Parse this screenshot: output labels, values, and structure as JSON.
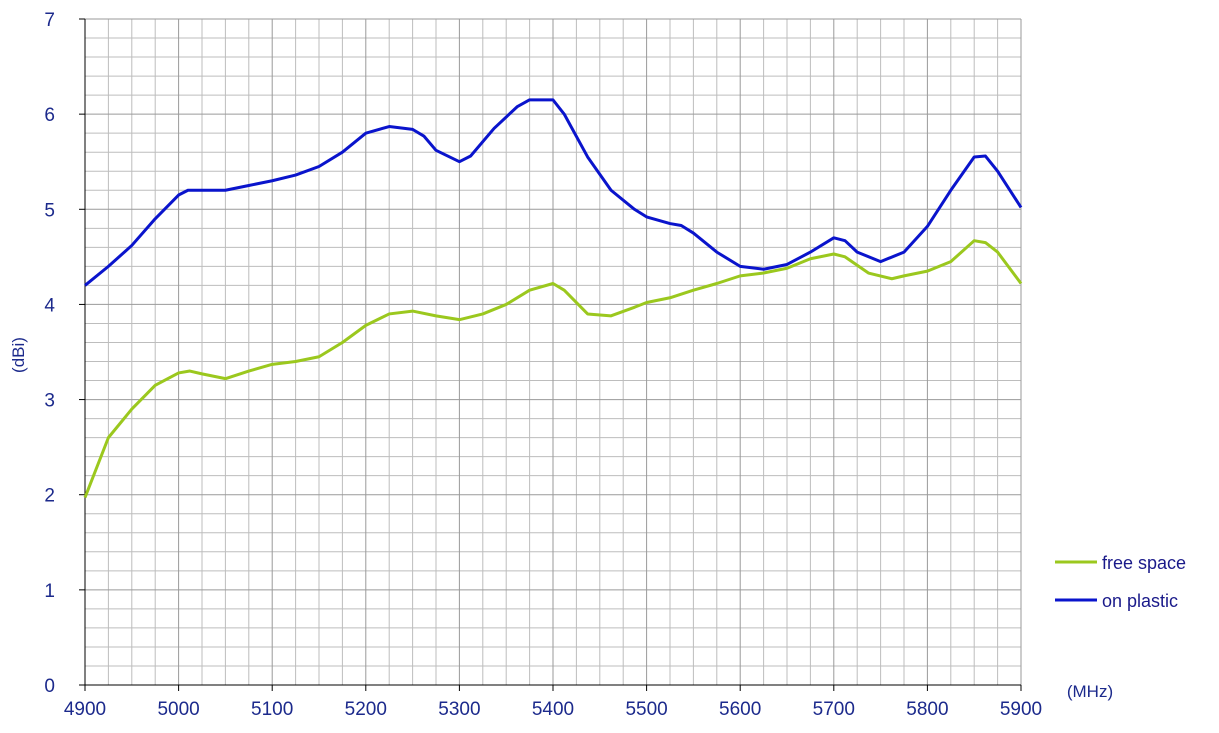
{
  "chart_data": {
    "type": "line",
    "y_label": "(dBi)",
    "x_label": "(MHz)",
    "xlim": [
      4900,
      5900
    ],
    "xticks": [
      4900,
      5000,
      5100,
      5200,
      5300,
      5400,
      5500,
      5600,
      5700,
      5800,
      5900
    ],
    "xminorticks": [
      4925,
      4950,
      4975,
      5025,
      5050,
      5075,
      5125,
      5150,
      5175,
      5225,
      5250,
      5275,
      5325,
      5350,
      5375,
      5425,
      5450,
      5475,
      5525,
      5550,
      5575,
      5625,
      5650,
      5675,
      5725,
      5750,
      5775,
      5825,
      5850,
      5875
    ],
    "ylim": [
      0,
      7
    ],
    "yticks": [
      0,
      1,
      2,
      3,
      4,
      5,
      6,
      7
    ],
    "yminorticks": [
      0.2,
      0.4,
      0.6,
      0.8,
      1.2,
      1.4,
      1.6,
      1.8,
      2.2,
      2.4,
      2.6,
      2.8,
      3.2,
      3.4,
      3.6,
      3.8,
      4.2,
      4.4,
      4.6,
      4.8,
      5.2,
      5.4,
      5.6,
      5.8,
      6.2,
      6.4,
      6.6,
      6.8
    ],
    "grid": true,
    "legend": "right",
    "series": [
      {
        "name": "free space",
        "color": "#9bc81e",
        "x": [
          4900,
          4925,
          4950,
          4975,
          5000,
          5012,
          5025,
          5050,
          5075,
          5100,
          5125,
          5150,
          5175,
          5200,
          5225,
          5250,
          5275,
          5300,
          5325,
          5350,
          5375,
          5400,
          5412,
          5437,
          5462,
          5487,
          5500,
          5525,
          5550,
          5575,
          5600,
          5625,
          5650,
          5675,
          5700,
          5712,
          5737,
          5762,
          5775,
          5800,
          5825,
          5850,
          5862,
          5875,
          5900
        ],
        "values": [
          1.97,
          2.6,
          2.9,
          3.15,
          3.28,
          3.3,
          3.27,
          3.22,
          3.3,
          3.37,
          3.4,
          3.45,
          3.6,
          3.78,
          3.9,
          3.93,
          3.88,
          3.84,
          3.9,
          4.0,
          4.15,
          4.22,
          4.15,
          3.9,
          3.88,
          3.97,
          4.02,
          4.07,
          4.15,
          4.22,
          4.3,
          4.33,
          4.38,
          4.48,
          4.53,
          4.5,
          4.33,
          4.27,
          4.3,
          4.35,
          4.45,
          4.67,
          4.65,
          4.55,
          4.22
        ]
      },
      {
        "name": "on plastic",
        "color": "#0a14cc",
        "x": [
          4900,
          4925,
          4950,
          4975,
          5000,
          5010,
          5025,
          5050,
          5075,
          5100,
          5125,
          5150,
          5175,
          5200,
          5225,
          5250,
          5262,
          5275,
          5300,
          5312,
          5337,
          5362,
          5375,
          5400,
          5412,
          5437,
          5462,
          5487,
          5500,
          5525,
          5537,
          5550,
          5575,
          5600,
          5625,
          5650,
          5675,
          5700,
          5712,
          5725,
          5750,
          5775,
          5800,
          5825,
          5850,
          5862,
          5875,
          5900
        ],
        "values": [
          4.2,
          4.4,
          4.62,
          4.9,
          5.15,
          5.2,
          5.2,
          5.2,
          5.25,
          5.3,
          5.36,
          5.45,
          5.6,
          5.8,
          5.87,
          5.84,
          5.77,
          5.62,
          5.5,
          5.56,
          5.85,
          6.08,
          6.15,
          6.15,
          6.0,
          5.55,
          5.2,
          5.0,
          4.92,
          4.85,
          4.83,
          4.75,
          4.55,
          4.4,
          4.37,
          4.42,
          4.55,
          4.7,
          4.67,
          4.55,
          4.45,
          4.55,
          4.82,
          5.2,
          5.55,
          5.56,
          5.4,
          5.02
        ]
      }
    ]
  }
}
